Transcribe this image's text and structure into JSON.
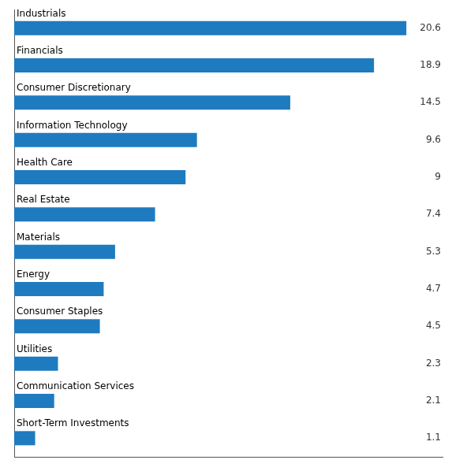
{
  "chart_data": {
    "type": "bar",
    "orientation": "horizontal",
    "categories": [
      "Short-Term Investments",
      "Communication Services",
      "Utilities",
      "Consumer Staples",
      "Energy",
      "Materials",
      "Real Estate",
      "Health Care",
      "Information Technology",
      "Consumer Discretionary",
      "Financials",
      "Industrials"
    ],
    "values": [
      1.1,
      2.1,
      2.3,
      4.5,
      4.7,
      5.3,
      7.4,
      9.0,
      9.6,
      14.5,
      18.9,
      20.6
    ],
    "color": "#1F7BBF",
    "xlim": [
      0,
      22.5
    ],
    "grid": false,
    "data_labels": true,
    "tick_labels": false
  }
}
